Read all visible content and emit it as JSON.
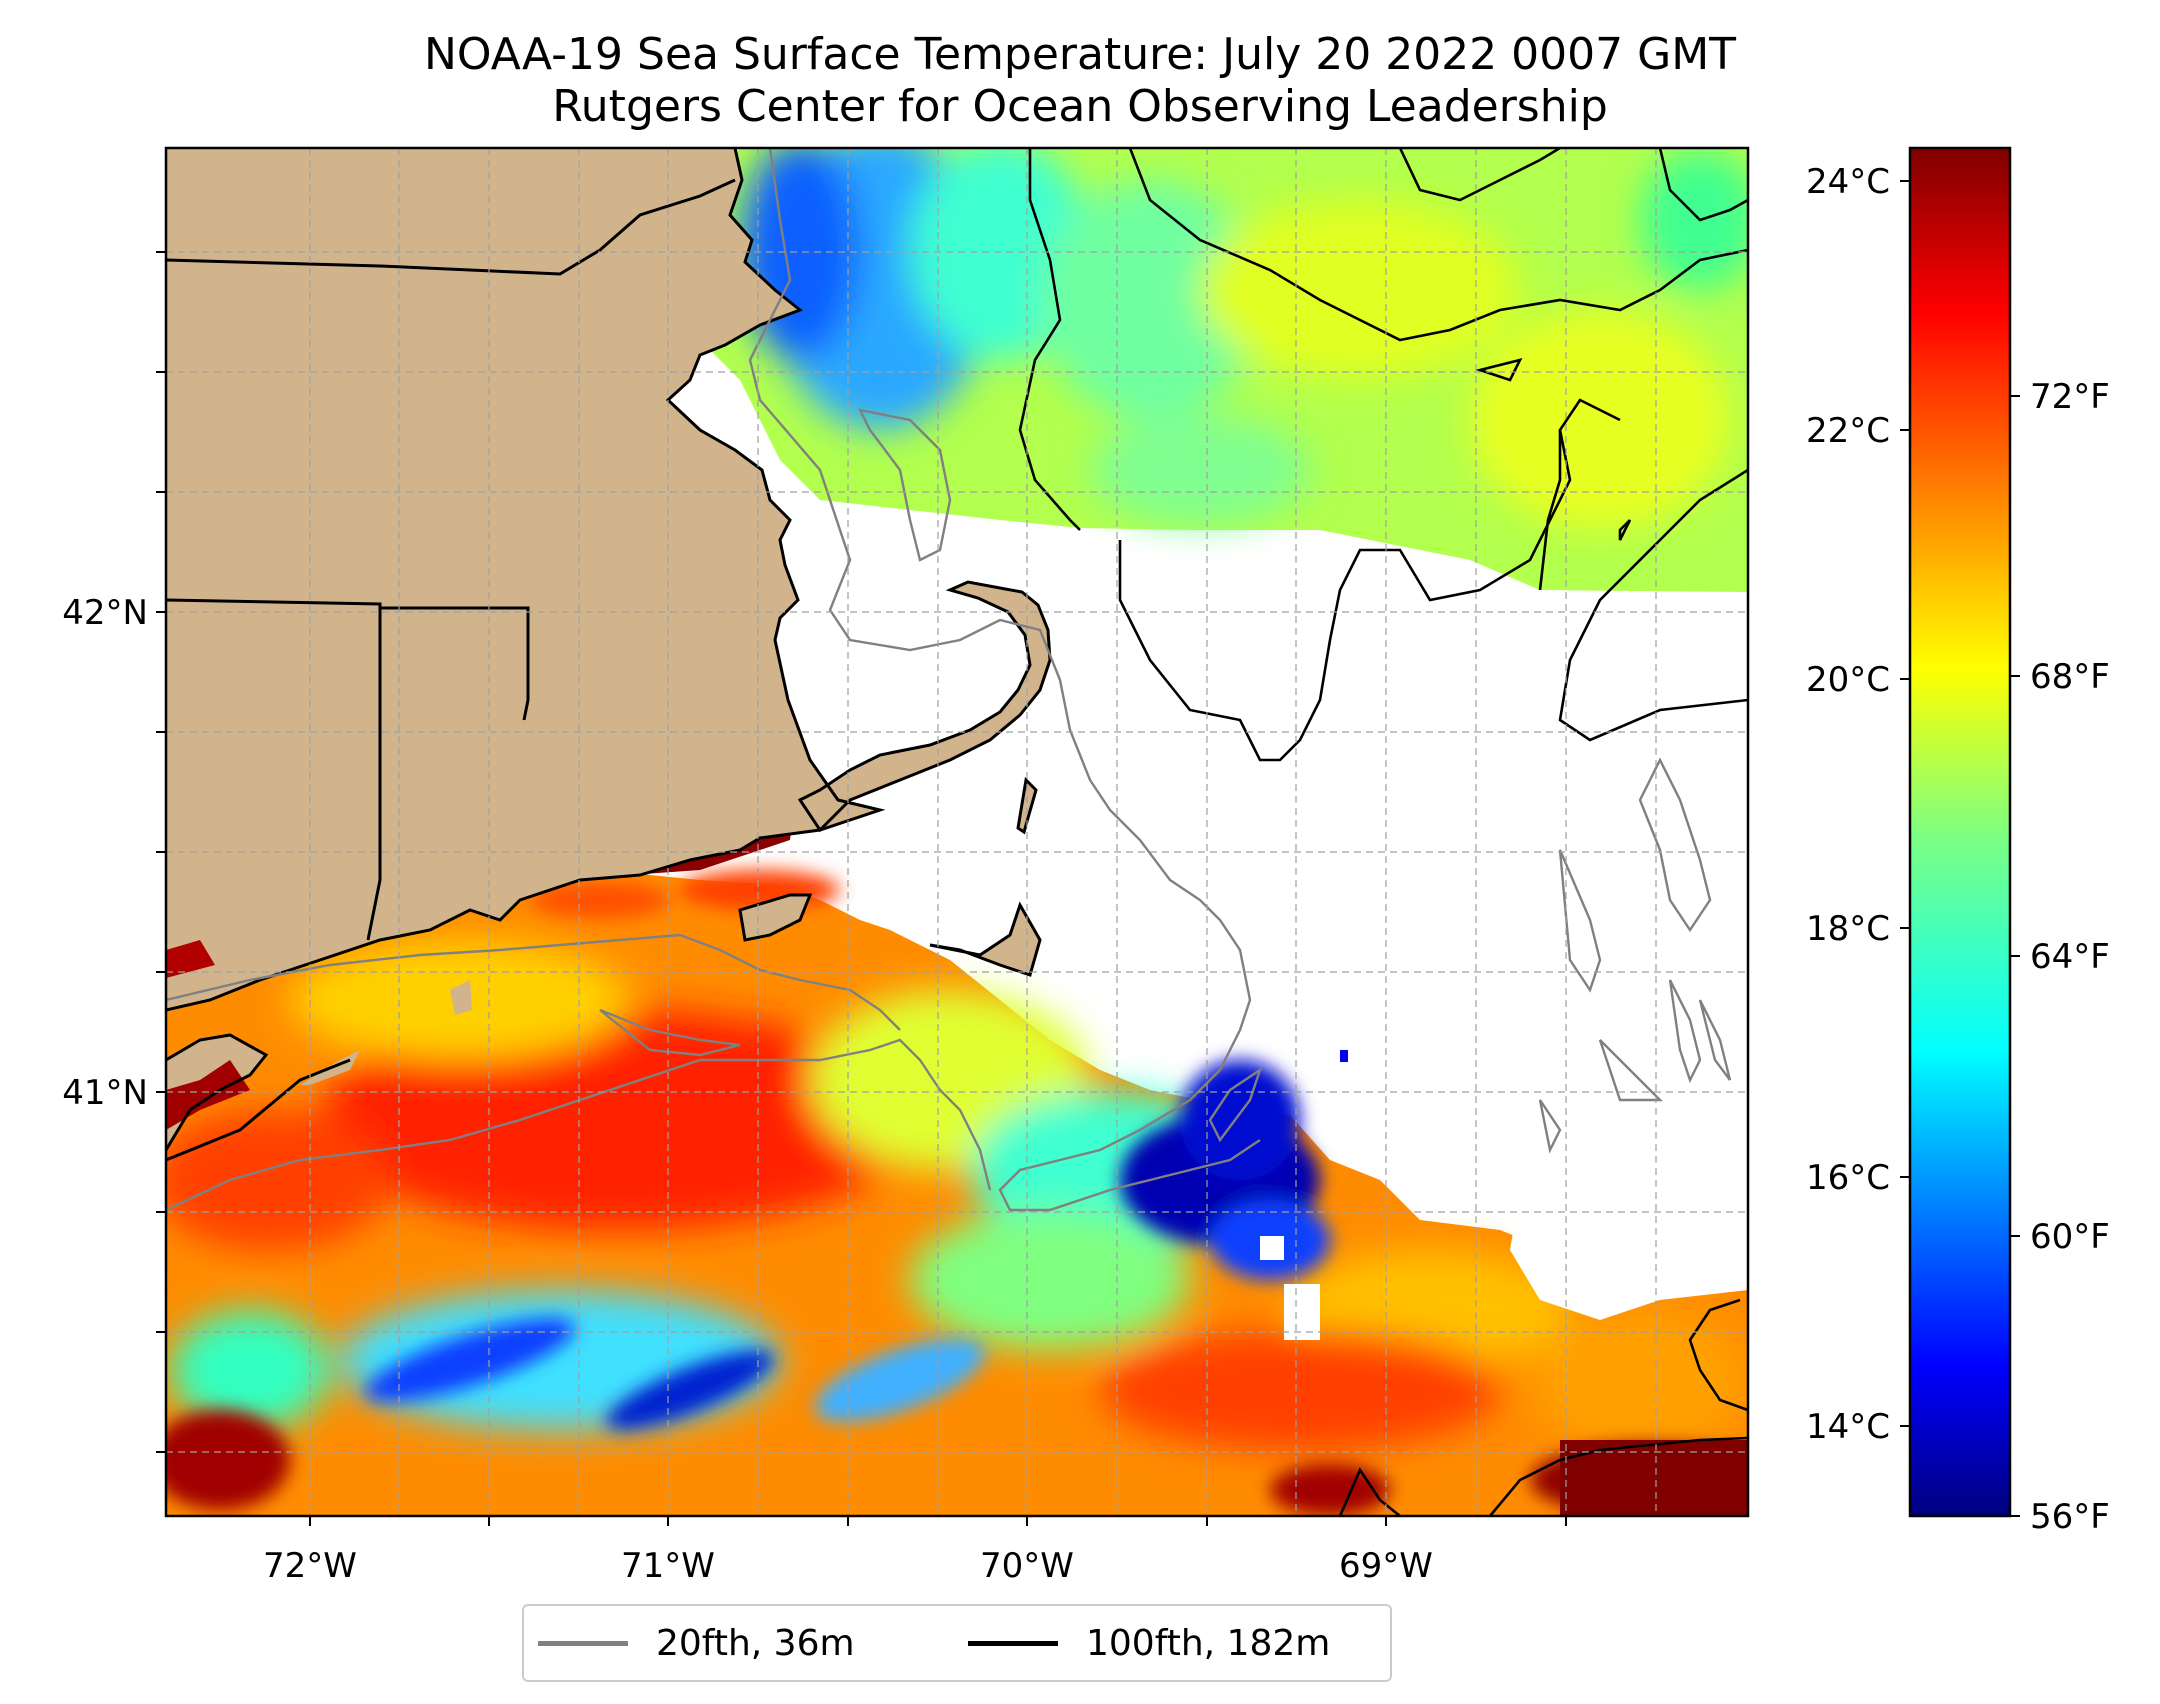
{
  "title_line1": "NOAA-19 Sea Surface Temperature: July 20 2022 0007 GMT",
  "title_line2": "Rutgers Center for Ocean Observing Leadership",
  "map": {
    "lon_labels": [
      "72°W",
      "71°W",
      "70°W",
      "69°W"
    ],
    "lat_labels": [
      "42°N",
      "41°N"
    ],
    "land_color": "#d2b48c",
    "grid": "on, dashed gray"
  },
  "colorbar": {
    "colormap": "jet",
    "celsius_labels": [
      "24°C",
      "22°C",
      "20°C",
      "18°C",
      "16°C",
      "14°C"
    ],
    "fahrenheit_labels": [
      "72°F",
      "68°F",
      "64°F",
      "60°F",
      "56°F"
    ],
    "range_f": [
      56,
      76
    ]
  },
  "legend": {
    "items": [
      {
        "label": "20fth, 36m",
        "color": "#808080"
      },
      {
        "label": "100fth, 182m",
        "color": "#000000"
      }
    ]
  }
}
